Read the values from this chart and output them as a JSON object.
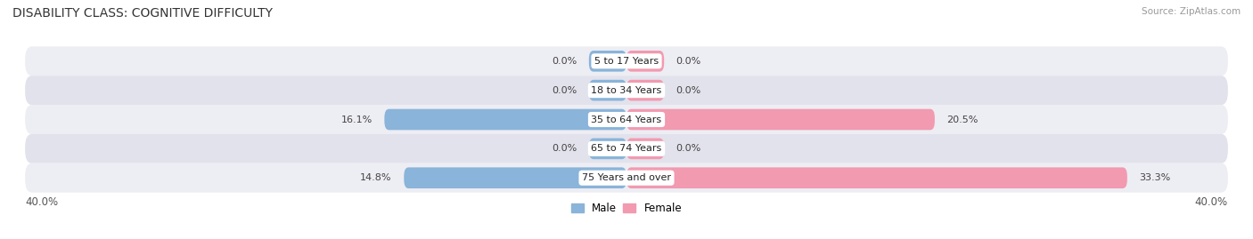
{
  "title": "DISABILITY CLASS: COGNITIVE DIFFICULTY",
  "source_text": "Source: ZipAtlas.com",
  "categories": [
    "5 to 17 Years",
    "18 to 34 Years",
    "35 to 64 Years",
    "65 to 74 Years",
    "75 Years and over"
  ],
  "male_values": [
    0.0,
    0.0,
    16.1,
    0.0,
    14.8
  ],
  "female_values": [
    0.0,
    0.0,
    20.5,
    0.0,
    33.3
  ],
  "max_val": 40.0,
  "male_color": "#8ab4d9",
  "female_color": "#f29ab0",
  "row_bg_even": "#ededf4",
  "row_bg_odd": "#e2e2ec",
  "axis_label_left": "40.0%",
  "axis_label_right": "40.0%",
  "title_fontsize": 10,
  "bar_height": 0.72,
  "zero_stub": 2.5,
  "legend_male": "Male",
  "legend_female": "Female"
}
